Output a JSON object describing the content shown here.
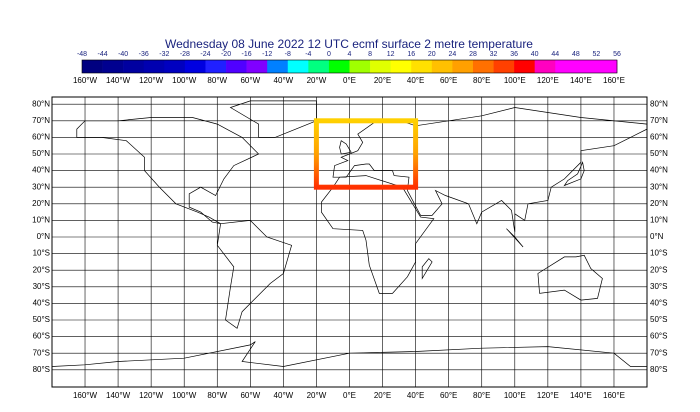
{
  "title": "Wednesday 08 June 2022 12 UTC ecmf surface  2 metre temperature",
  "colorbar": {
    "labels": [
      -48,
      -44,
      -40,
      -36,
      -32,
      -28,
      -24,
      -20,
      -16,
      -12,
      -8,
      -4,
      0,
      4,
      8,
      12,
      16,
      20,
      24,
      28,
      32,
      36,
      40,
      44,
      48,
      52,
      56
    ],
    "colors": [
      "#000080",
      "#000090",
      "#0000a0",
      "#0000b0",
      "#0000c0",
      "#0000e0",
      "#2020ff",
      "#5000ff",
      "#8000ff",
      "#0080ff",
      "#00ffff",
      "#00ff80",
      "#00ff00",
      "#a0ff00",
      "#e0ff00",
      "#ffff00",
      "#ffe000",
      "#ffc000",
      "#ffa000",
      "#ff7000",
      "#ff4000",
      "#ff0000",
      "#ff00c0",
      "#ff00ff",
      "#ff00ff",
      "#ff00ff"
    ]
  },
  "lon_labels": [
    "160°W",
    "140°W",
    "120°W",
    "100°W",
    "80°W",
    "60°W",
    "40°W",
    "20°W",
    "0°E",
    "20°E",
    "40°E",
    "60°E",
    "80°E",
    "100°E",
    "120°E",
    "140°E",
    "160°E"
  ],
  "lat_labels": [
    "80°N",
    "70°N",
    "60°N",
    "50°N",
    "40°N",
    "30°N",
    "20°N",
    "10°N",
    "0°N",
    "10°S",
    "20°S",
    "30°S",
    "40°S",
    "50°S",
    "60°S",
    "70°S",
    "80°S"
  ]
}
